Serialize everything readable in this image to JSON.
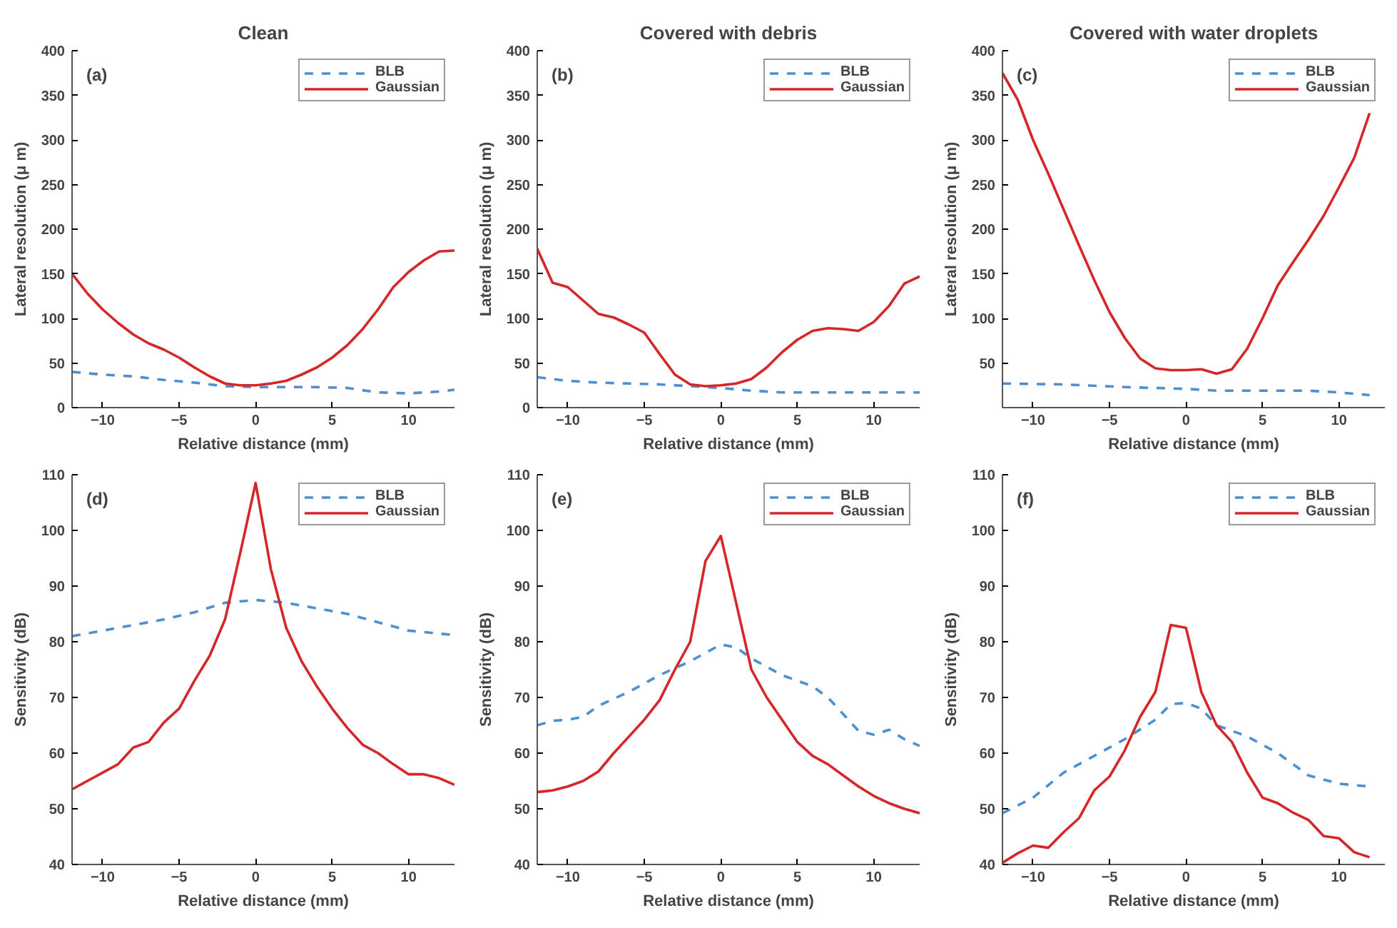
{
  "chart_data": [
    {
      "type": "line",
      "title": "Clean",
      "annotations": [
        "(a)"
      ],
      "xlabel": "Relative distance (mm)",
      "ylabel": "Lateral resolution (μ m)",
      "xlim": [
        -12,
        13
      ],
      "xticks": [
        -10,
        -5,
        0,
        5,
        10
      ],
      "ylim": [
        0,
        400
      ],
      "yticks": [
        0,
        50,
        100,
        150,
        200,
        250,
        300,
        350,
        400
      ],
      "legend": "top right",
      "grid": false,
      "series": [
        {
          "name": "BLB",
          "color": "#4d8fd1",
          "line_style": "dashed",
          "x": [
            -12,
            -10,
            -8,
            -6,
            -4,
            -2,
            0,
            2,
            4,
            6,
            8,
            10,
            12,
            13
          ],
          "values": [
            40,
            37,
            35,
            31,
            28,
            24,
            23,
            23,
            23,
            22,
            17,
            16,
            18,
            20
          ]
        },
        {
          "name": "Gaussian",
          "color": "#d62728",
          "line_style": "solid",
          "x": [
            -12,
            -11,
            -10,
            -9,
            -8,
            -7,
            -6,
            -5,
            -4,
            -3,
            -2,
            -1,
            0,
            1,
            2,
            3,
            4,
            5,
            6,
            7,
            8,
            9,
            10,
            11,
            12,
            13
          ],
          "values": [
            150,
            128,
            110,
            95,
            82,
            72,
            65,
            56,
            45,
            35,
            27,
            25,
            25,
            27,
            30,
            37,
            45,
            56,
            70,
            88,
            110,
            135,
            152,
            165,
            175,
            176
          ]
        }
      ]
    },
    {
      "type": "line",
      "title": "Covered with debris",
      "annotations": [
        "(b)"
      ],
      "xlabel": "Relative distance (mm)",
      "ylabel": "Lateral resolution (μ m)",
      "xlim": [
        -12,
        13
      ],
      "xticks": [
        -10,
        -5,
        0,
        5,
        10
      ],
      "ylim": [
        0,
        400
      ],
      "yticks": [
        0,
        50,
        100,
        150,
        200,
        250,
        300,
        350,
        400
      ],
      "legend": "top right",
      "grid": false,
      "series": [
        {
          "name": "BLB",
          "color": "#4d8fd1",
          "line_style": "dashed",
          "x": [
            -12,
            -10,
            -8,
            -6,
            -4,
            -2,
            0,
            2,
            4,
            6,
            8,
            10,
            13
          ],
          "values": [
            34,
            30,
            28,
            27,
            26,
            24,
            22,
            19,
            17,
            17,
            17,
            17,
            17
          ]
        },
        {
          "name": "Gaussian",
          "color": "#d62728",
          "line_style": "solid",
          "x": [
            -12,
            -11,
            -10,
            -9,
            -8,
            -7,
            -6,
            -5,
            -4,
            -3,
            -2,
            -1,
            0,
            1,
            2,
            3,
            4,
            5,
            6,
            7,
            8,
            9,
            10,
            11,
            12,
            13
          ],
          "values": [
            178,
            140,
            135,
            120,
            105,
            101,
            93,
            84,
            60,
            37,
            26,
            24,
            25,
            27,
            32,
            45,
            62,
            76,
            86,
            89,
            88,
            86,
            96,
            114,
            139,
            147
          ]
        }
      ]
    },
    {
      "type": "line",
      "title": "Covered with water droplets",
      "annotations": [
        "(c)"
      ],
      "xlabel": "Relative distance (mm)",
      "ylabel": "Lateral resolution (μ m)",
      "xlim": [
        -12,
        13
      ],
      "xticks": [
        -10,
        -5,
        0,
        5,
        10
      ],
      "ylim": [
        0,
        400
      ],
      "yticks": [
        50,
        100,
        150,
        200,
        250,
        300,
        350,
        400
      ],
      "legend": "top right",
      "grid": false,
      "series": [
        {
          "name": "BLB",
          "color": "#4d8fd1",
          "line_style": "dashed",
          "x": [
            -12,
            -8,
            -4,
            0,
            2,
            4,
            8,
            10,
            12
          ],
          "values": [
            27,
            26,
            23,
            21,
            19,
            19,
            19,
            17,
            14
          ]
        },
        {
          "name": "Gaussian",
          "color": "#d62728",
          "line_style": "solid",
          "x": [
            -12,
            -11,
            -10,
            -9,
            -8,
            -7,
            -6,
            -5,
            -4,
            -3,
            -2,
            -1,
            0,
            1,
            2,
            3,
            4,
            5,
            6,
            7,
            8,
            9,
            10,
            11,
            12
          ],
          "values": [
            375,
            345,
            300,
            262,
            222,
            182,
            143,
            107,
            78,
            55,
            44,
            42,
            42,
            43,
            38,
            43,
            66,
            100,
            137,
            163,
            188,
            215,
            247,
            280,
            330
          ]
        }
      ]
    },
    {
      "type": "line",
      "annotations": [
        "(d)"
      ],
      "xlabel": "Relative distance (mm)",
      "ylabel": "Sensitivity (dB)",
      "xlim": [
        -12,
        13
      ],
      "xticks": [
        -10,
        -5,
        0,
        5,
        10
      ],
      "ylim": [
        40,
        110
      ],
      "yticks": [
        40,
        50,
        60,
        70,
        80,
        90,
        100,
        110
      ],
      "legend": "top right",
      "grid": false,
      "series": [
        {
          "name": "BLB",
          "color": "#4d8fd1",
          "line_style": "dashed",
          "x": [
            -12,
            -10,
            -8,
            -6,
            -4,
            -2,
            0,
            2,
            4,
            6,
            8,
            10,
            13
          ],
          "values": [
            81,
            82,
            83,
            84,
            85.3,
            87,
            87.5,
            87,
            86,
            85,
            83.5,
            82,
            81.2
          ]
        },
        {
          "name": "Gaussian",
          "color": "#d62728",
          "line_style": "solid",
          "x": [
            -12,
            -11,
            -10,
            -9,
            -8,
            -7,
            -6,
            -5,
            -4,
            -3,
            -2,
            -1,
            0,
            1,
            2,
            3,
            4,
            5,
            6,
            7,
            8,
            9,
            10,
            11,
            12,
            13
          ],
          "values": [
            53.5,
            55,
            56.5,
            58,
            61,
            62,
            65.5,
            68,
            73,
            77.5,
            84,
            96,
            108.5,
            93,
            82.5,
            76.5,
            72,
            68,
            64.5,
            61.5,
            60,
            58,
            56.2,
            56.2,
            55.5,
            54.3
          ]
        }
      ]
    },
    {
      "type": "line",
      "annotations": [
        "(e)"
      ],
      "xlabel": "Relative distance (mm)",
      "ylabel": "Sensitivity (dB)",
      "xlim": [
        -12,
        13
      ],
      "xticks": [
        -10,
        -5,
        0,
        5,
        10
      ],
      "ylim": [
        40,
        110
      ],
      "yticks": [
        40,
        50,
        60,
        70,
        80,
        90,
        100,
        110
      ],
      "legend": "top right",
      "grid": false,
      "series": [
        {
          "name": "BLB",
          "color": "#4d8fd1",
          "line_style": "dashed",
          "x": [
            -12,
            -11,
            -10,
            -9,
            -8,
            -6,
            -4,
            -2,
            0,
            1,
            2,
            4,
            6,
            7,
            8,
            9,
            10,
            11,
            12,
            13
          ],
          "values": [
            65,
            65.8,
            66,
            66.5,
            68.5,
            71,
            74,
            76.5,
            79.5,
            79,
            77,
            74,
            72,
            70,
            67,
            64,
            63.3,
            64.2,
            62.5,
            61.3
          ]
        },
        {
          "name": "Gaussian",
          "color": "#d62728",
          "line_style": "solid",
          "x": [
            -12,
            -11,
            -10,
            -9,
            -8,
            -7,
            -6,
            -5,
            -4,
            -3,
            -2,
            -1,
            0,
            1,
            2,
            3,
            4,
            5,
            6,
            7,
            8,
            9,
            10,
            11,
            12,
            13
          ],
          "values": [
            53,
            53.3,
            54,
            55,
            56.7,
            60,
            63,
            66,
            69.5,
            75,
            80,
            94.5,
            99,
            87,
            75,
            70,
            66,
            62,
            59.5,
            58,
            56,
            54,
            52.3,
            51,
            50,
            49.2
          ]
        }
      ]
    },
    {
      "type": "line",
      "annotations": [
        "(f)"
      ],
      "xlabel": "Relative distance (mm)",
      "ylabel": "Sensitivity (dB)",
      "xlim": [
        -12,
        13
      ],
      "xticks": [
        -10,
        -5,
        0,
        5,
        10
      ],
      "ylim": [
        40,
        110
      ],
      "yticks": [
        40,
        50,
        60,
        70,
        80,
        90,
        100,
        110
      ],
      "legend": "top right",
      "grid": false,
      "series": [
        {
          "name": "BLB",
          "color": "#4d8fd1",
          "line_style": "dashed",
          "x": [
            -12,
            -10,
            -8,
            -6,
            -4,
            -2,
            -1,
            0,
            1,
            2,
            4,
            5,
            6,
            8,
            10,
            12
          ],
          "values": [
            49.2,
            52,
            56.5,
            59.5,
            62.5,
            66,
            68.8,
            69,
            68,
            65,
            63,
            61.5,
            60,
            56,
            54.5,
            54
          ]
        },
        {
          "name": "Gaussian",
          "color": "#d62728",
          "line_style": "solid",
          "x": [
            -12,
            -11,
            -10,
            -9,
            -8,
            -7,
            -6,
            -5,
            -4,
            -3,
            -2,
            -1,
            0,
            1,
            2,
            3,
            4,
            5,
            6,
            7,
            8,
            9,
            10,
            11,
            12
          ],
          "values": [
            40.3,
            42,
            43.4,
            43,
            45.8,
            48.3,
            53.3,
            55.8,
            60.5,
            66.5,
            71,
            83,
            82.5,
            71,
            65,
            62,
            56.5,
            52,
            51,
            49.3,
            48,
            45.1,
            44.7,
            42.2,
            41.3
          ]
        }
      ]
    }
  ]
}
